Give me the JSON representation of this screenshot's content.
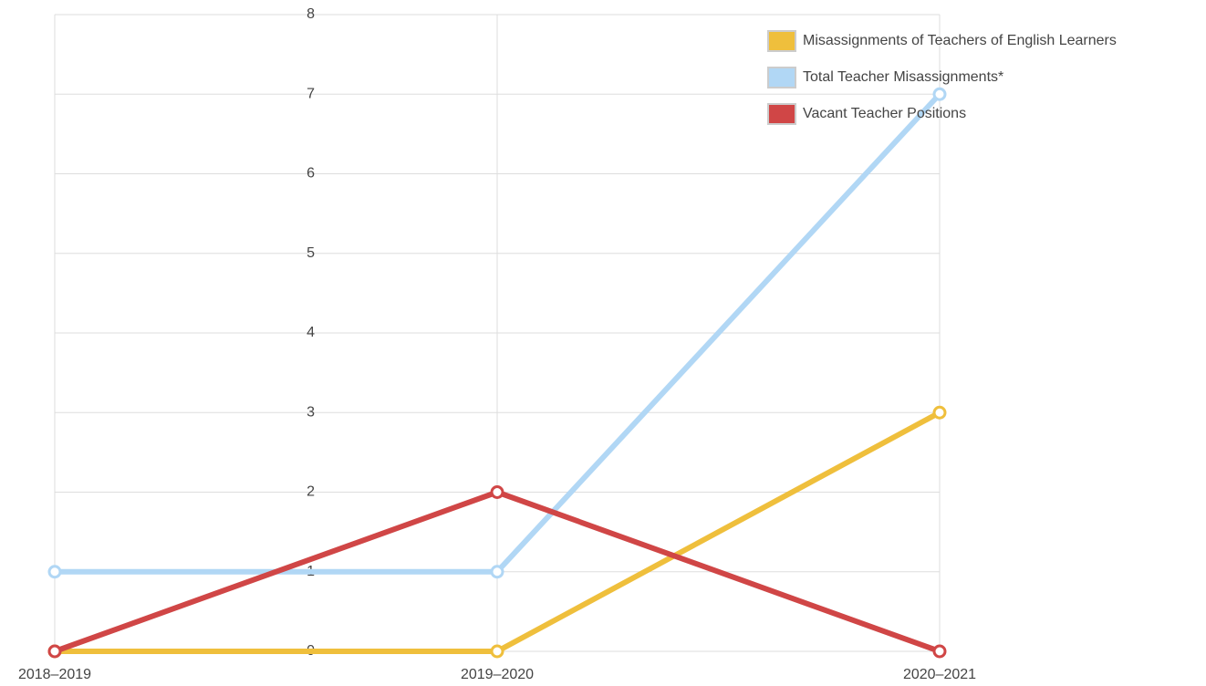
{
  "chart_data": {
    "type": "line",
    "categories": [
      "2018–2019",
      "2019–2020",
      "2020–2021"
    ],
    "series": [
      {
        "name": "Misassignments of Teachers of English Learners",
        "color": "#efbf3c",
        "values": [
          0,
          0,
          3
        ]
      },
      {
        "name": "Total Teacher Misassignments*",
        "color": "#b1d7f5",
        "values": [
          1,
          1,
          7
        ]
      },
      {
        "name": "Vacant Teacher Positions",
        "color": "#d04646",
        "values": [
          0,
          2,
          0
        ]
      }
    ],
    "ylim": [
      0,
      8
    ],
    "yticks": [
      0,
      1,
      2,
      3,
      4,
      5,
      6,
      7,
      8
    ],
    "grid": true,
    "legend": "top-right"
  }
}
